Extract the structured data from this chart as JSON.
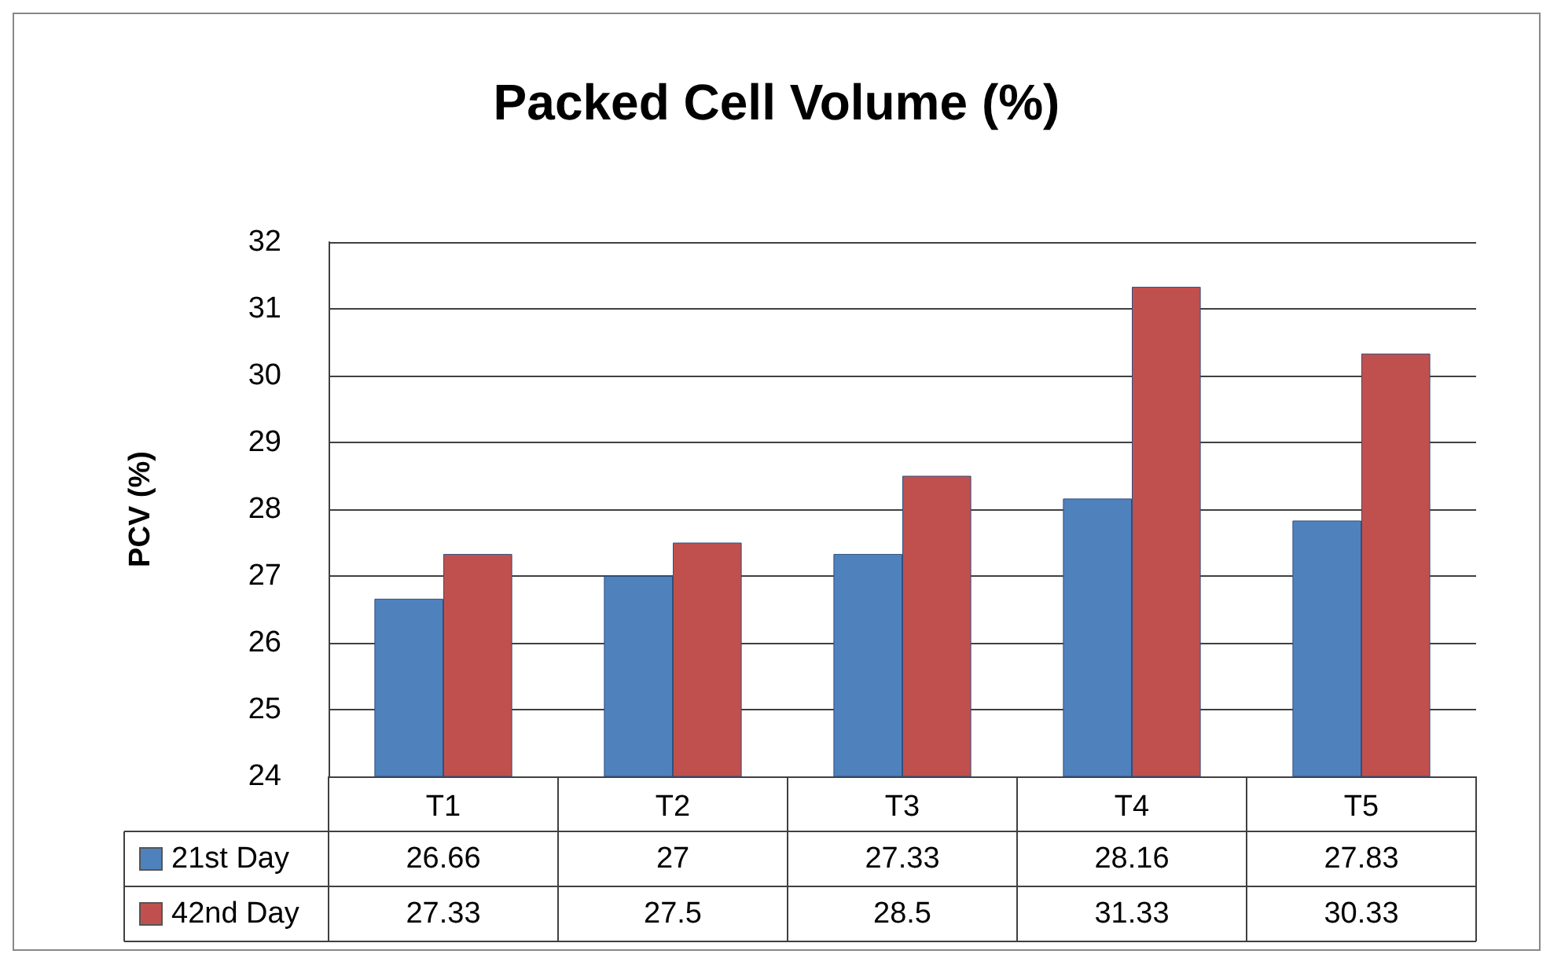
{
  "chart_data": {
    "type": "bar",
    "title": "Packed Cell Volume (%)",
    "ylabel": "PCV (%)",
    "categories": [
      "T1",
      "T2",
      "T3",
      "T4",
      "T5"
    ],
    "series": [
      {
        "name": "21st Day",
        "color": "#4f81bd",
        "values": [
          26.66,
          27,
          27.33,
          28.16,
          27.83
        ]
      },
      {
        "name": "42nd Day",
        "color": "#c0504d",
        "values": [
          27.33,
          27.5,
          28.5,
          31.33,
          30.33
        ]
      }
    ],
    "ylim": [
      24,
      32
    ],
    "yticks": [
      24,
      25,
      26,
      27,
      28,
      29,
      30,
      31,
      32
    ],
    "grid": "y",
    "legend": "bottom",
    "data_labels": true
  }
}
